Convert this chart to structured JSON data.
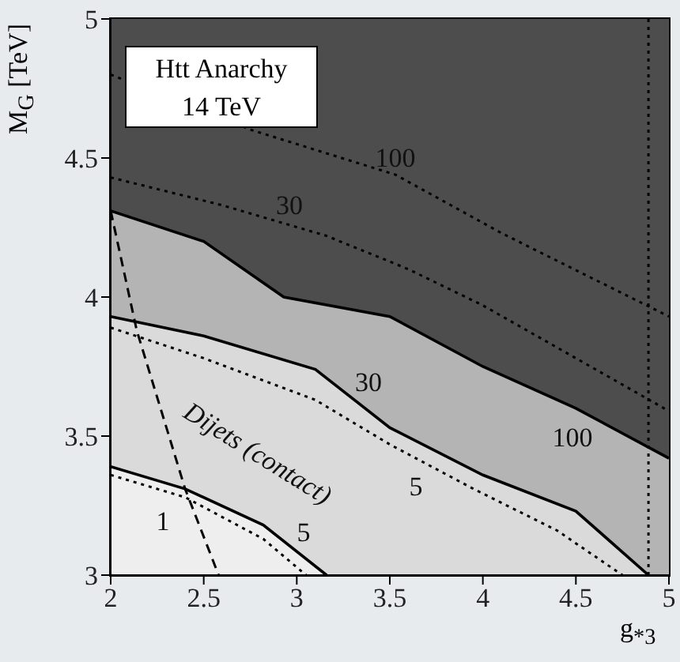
{
  "chart_data": {
    "type": "line",
    "title": "Htt Anarchy",
    "subtitle": "14 TeV",
    "xlabel": "g$_{*3}$",
    "ylabel": "M$_{G}$ [TeV]",
    "xlim": [
      2,
      5
    ],
    "xticks": [
      2,
      2.5,
      3,
      3.5,
      4,
      4.5,
      5
    ],
    "ylim": [
      3,
      5
    ],
    "yticks": [
      3,
      3.5,
      4,
      4.5,
      5
    ],
    "legend": false,
    "marker": "none",
    "series": [
      {
        "type": "area",
        "color": "#b4b4b4",
        "x": [
          2,
          2.5,
          2.93,
          3.5,
          4.0,
          4.5,
          5
        ],
        "values": [
          4.31,
          4.2,
          4.0,
          3.93,
          3.75,
          3.6,
          3.42
        ],
        "line_style": "solid"
      },
      {
        "type": "area",
        "color": "#dadada",
        "x": [
          2,
          2.5,
          3.1,
          3.5,
          4,
          4.5,
          4.89
        ],
        "values": [
          3.93,
          3.86,
          3.74,
          3.53,
          3.36,
          3.23,
          3.0
        ],
        "line_style": "solid"
      },
      {
        "type": "area",
        "color": "#eeeeee",
        "x": [
          2,
          2.4,
          2.82,
          3.16
        ],
        "values": [
          3.39,
          3.31,
          3.18,
          3.0
        ],
        "line_style": "solid"
      },
      {
        "color": "#000000",
        "x": [
          2,
          2.76,
          3.53,
          4.1,
          5
        ],
        "values": [
          4.8,
          4.6,
          4.44,
          4.23,
          3.93
        ],
        "line_style": "dotted"
      },
      {
        "color": "#000000",
        "x": [
          2,
          2.6,
          3.16,
          3.6,
          4.0,
          4.5,
          5
        ],
        "values": [
          4.43,
          4.33,
          4.22,
          4.1,
          3.97,
          3.78,
          3.59
        ],
        "line_style": "dotted"
      },
      {
        "color": "#000000",
        "x": [
          2,
          2.5,
          3.1,
          3.5,
          3.95,
          4.4,
          4.75
        ],
        "values": [
          3.89,
          3.78,
          3.63,
          3.47,
          3.31,
          3.16,
          3.0
        ],
        "line_style": "dotted"
      },
      {
        "color": "#000000",
        "x": [
          2,
          2.4,
          2.82,
          3.05
        ],
        "values": [
          3.36,
          3.28,
          3.13,
          3.0
        ],
        "line_style": "dotted"
      },
      {
        "color": "#000000",
        "x": [
          2,
          2.14,
          2.4,
          2.58
        ],
        "values": [
          4.31,
          3.88,
          3.31,
          3.0
        ],
        "line_style": "dashed"
      }
    ],
    "ref_lines": [
      {
        "axis": "x",
        "value": 4.89,
        "color": "#000000",
        "line_style": "dotted"
      }
    ],
    "annotations": [
      "100",
      "30",
      "30",
      "100",
      "5",
      "5",
      "1",
      "Dijets (contact)"
    ]
  }
}
